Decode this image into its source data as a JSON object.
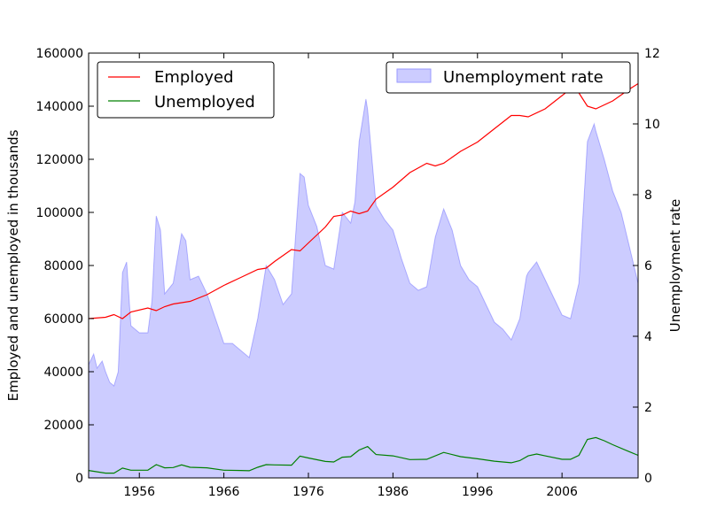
{
  "chart_data": {
    "type": "line",
    "x_range": [
      1950,
      2015
    ],
    "xticks": [
      1956,
      1966,
      1976,
      1986,
      1996,
      2006
    ],
    "left_axis": {
      "label": "Employed and unemployed in thousands",
      "range": [
        0,
        160000
      ],
      "ticks": [
        0,
        20000,
        40000,
        60000,
        80000,
        100000,
        120000,
        140000,
        160000
      ]
    },
    "right_axis": {
      "label": "Unemployment rate",
      "range": [
        0,
        12
      ],
      "ticks": [
        0,
        2,
        4,
        6,
        8,
        10,
        12
      ]
    },
    "series": [
      {
        "name": "Employed",
        "axis": "left",
        "color": "#ff0000",
        "points": [
          [
            1950,
            60000
          ],
          [
            1952,
            60500
          ],
          [
            1953,
            61500
          ],
          [
            1954,
            60000
          ],
          [
            1955,
            62500
          ],
          [
            1957,
            64000
          ],
          [
            1958,
            63000
          ],
          [
            1959,
            64500
          ],
          [
            1960,
            65500
          ],
          [
            1962,
            66500
          ],
          [
            1964,
            69000
          ],
          [
            1966,
            72500
          ],
          [
            1968,
            75500
          ],
          [
            1970,
            78500
          ],
          [
            1971,
            79000
          ],
          [
            1972,
            81500
          ],
          [
            1974,
            86000
          ],
          [
            1975,
            85500
          ],
          [
            1976,
            88500
          ],
          [
            1978,
            94500
          ],
          [
            1979,
            98500
          ],
          [
            1980,
            99000
          ],
          [
            1981,
            100500
          ],
          [
            1982,
            99500
          ],
          [
            1983,
            100500
          ],
          [
            1984,
            105000
          ],
          [
            1986,
            109500
          ],
          [
            1988,
            115000
          ],
          [
            1990,
            118500
          ],
          [
            1991,
            117500
          ],
          [
            1992,
            118500
          ],
          [
            1994,
            123000
          ],
          [
            1996,
            126500
          ],
          [
            1998,
            131500
          ],
          [
            2000,
            136500
          ],
          [
            2001,
            136500
          ],
          [
            2002,
            136000
          ],
          [
            2004,
            139000
          ],
          [
            2006,
            144000
          ],
          [
            2007,
            146500
          ],
          [
            2008,
            145000
          ],
          [
            2009,
            140000
          ],
          [
            2010,
            139000
          ],
          [
            2012,
            142000
          ],
          [
            2014,
            146500
          ],
          [
            2015,
            148500
          ]
        ]
      },
      {
        "name": "Unemployed",
        "axis": "left",
        "color": "#008000",
        "points": [
          [
            1950,
            2800
          ],
          [
            1952,
            1800
          ],
          [
            1953,
            1800
          ],
          [
            1954,
            3700
          ],
          [
            1955,
            2900
          ],
          [
            1957,
            2900
          ],
          [
            1958,
            5000
          ],
          [
            1959,
            3800
          ],
          [
            1960,
            3900
          ],
          [
            1961,
            4900
          ],
          [
            1962,
            4000
          ],
          [
            1964,
            3800
          ],
          [
            1966,
            2900
          ],
          [
            1968,
            2800
          ],
          [
            1969,
            2700
          ],
          [
            1970,
            4000
          ],
          [
            1971,
            5000
          ],
          [
            1972,
            4900
          ],
          [
            1974,
            4800
          ],
          [
            1975,
            8200
          ],
          [
            1976,
            7500
          ],
          [
            1978,
            6200
          ],
          [
            1979,
            6000
          ],
          [
            1980,
            7800
          ],
          [
            1981,
            8000
          ],
          [
            1982,
            10500
          ],
          [
            1983,
            11800
          ],
          [
            1984,
            8800
          ],
          [
            1986,
            8300
          ],
          [
            1988,
            6900
          ],
          [
            1990,
            7000
          ],
          [
            1992,
            9600
          ],
          [
            1994,
            8000
          ],
          [
            1996,
            7200
          ],
          [
            1998,
            6300
          ],
          [
            2000,
            5700
          ],
          [
            2001,
            6500
          ],
          [
            2002,
            8300
          ],
          [
            2003,
            9000
          ],
          [
            2004,
            8300
          ],
          [
            2006,
            7000
          ],
          [
            2007,
            7000
          ],
          [
            2008,
            8500
          ],
          [
            2009,
            14500
          ],
          [
            2010,
            15200
          ],
          [
            2011,
            14000
          ],
          [
            2012,
            12500
          ],
          [
            2014,
            9800
          ],
          [
            2015,
            8500
          ]
        ]
      },
      {
        "name": "Unemployment rate",
        "axis": "right",
        "type": "area",
        "color": "#0000ff",
        "fill_opacity": 0.2,
        "points": [
          [
            1950,
            3.2
          ],
          [
            1950.6,
            3.5
          ],
          [
            1951,
            3.1
          ],
          [
            1951.6,
            3.3
          ],
          [
            1952,
            3.0
          ],
          [
            1952.5,
            2.7
          ],
          [
            1953,
            2.6
          ],
          [
            1953.5,
            3.0
          ],
          [
            1954,
            5.8
          ],
          [
            1954.5,
            6.1
          ],
          [
            1955,
            4.3
          ],
          [
            1956,
            4.1
          ],
          [
            1957,
            4.1
          ],
          [
            1957.5,
            5.0
          ],
          [
            1958,
            7.4
          ],
          [
            1958.5,
            7.0
          ],
          [
            1959,
            5.2
          ],
          [
            1960,
            5.5
          ],
          [
            1961,
            6.9
          ],
          [
            1961.5,
            6.7
          ],
          [
            1962,
            5.6
          ],
          [
            1963,
            5.7
          ],
          [
            1964,
            5.2
          ],
          [
            1965,
            4.5
          ],
          [
            1966,
            3.8
          ],
          [
            1967,
            3.8
          ],
          [
            1968,
            3.6
          ],
          [
            1969,
            3.4
          ],
          [
            1970,
            4.5
          ],
          [
            1971,
            6.0
          ],
          [
            1972,
            5.6
          ],
          [
            1973,
            4.9
          ],
          [
            1974,
            5.2
          ],
          [
            1975,
            8.6
          ],
          [
            1975.5,
            8.5
          ],
          [
            1976,
            7.7
          ],
          [
            1977,
            7.1
          ],
          [
            1978,
            6.0
          ],
          [
            1979,
            5.9
          ],
          [
            1980,
            7.5
          ],
          [
            1981,
            7.2
          ],
          [
            1981.5,
            7.8
          ],
          [
            1982,
            9.5
          ],
          [
            1982.8,
            10.7
          ],
          [
            1983,
            10.4
          ],
          [
            1984,
            7.7
          ],
          [
            1985,
            7.3
          ],
          [
            1986,
            7.0
          ],
          [
            1987,
            6.2
          ],
          [
            1988,
            5.5
          ],
          [
            1989,
            5.3
          ],
          [
            1990,
            5.4
          ],
          [
            1991,
            6.8
          ],
          [
            1992,
            7.6
          ],
          [
            1993,
            7.0
          ],
          [
            1994,
            6.0
          ],
          [
            1995,
            5.6
          ],
          [
            1996,
            5.4
          ],
          [
            1997,
            4.9
          ],
          [
            1998,
            4.4
          ],
          [
            1999,
            4.2
          ],
          [
            2000,
            3.9
          ],
          [
            2001,
            4.5
          ],
          [
            2001.8,
            5.7
          ],
          [
            2002,
            5.8
          ],
          [
            2003,
            6.1
          ],
          [
            2004,
            5.6
          ],
          [
            2005,
            5.1
          ],
          [
            2006,
            4.6
          ],
          [
            2007,
            4.5
          ],
          [
            2008,
            5.5
          ],
          [
            2009,
            9.5
          ],
          [
            2009.8,
            10.0
          ],
          [
            2010,
            9.8
          ],
          [
            2011,
            9.0
          ],
          [
            2012,
            8.1
          ],
          [
            2013,
            7.5
          ],
          [
            2014,
            6.5
          ],
          [
            2015,
            5.5
          ]
        ]
      }
    ],
    "legends": [
      {
        "placement": "top-left",
        "entries": [
          "Employed",
          "Unemployed"
        ]
      },
      {
        "placement": "top-right",
        "entries": [
          "Unemployment rate"
        ]
      }
    ]
  }
}
